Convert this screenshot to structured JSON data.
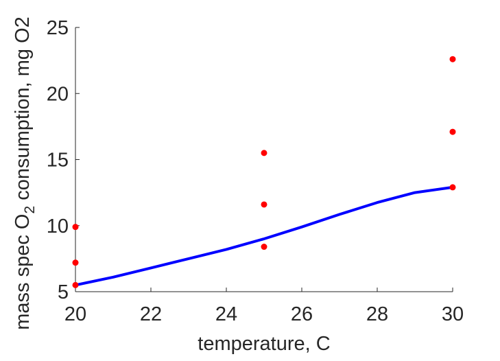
{
  "chart_data": {
    "type": "scatter",
    "xlabel": "temperature, C",
    "ylabel": {
      "prefix": "mass spec O",
      "subscript": "2",
      "suffix": " consumption, mg O2"
    },
    "xlim": [
      20,
      30
    ],
    "ylim": [
      5,
      25
    ],
    "xticks": [
      20,
      22,
      24,
      26,
      28,
      30
    ],
    "yticks": [
      5,
      10,
      15,
      20,
      25
    ],
    "grid": false,
    "series": [
      {
        "kind": "points",
        "color": "#ff0000",
        "points": [
          {
            "x": 20,
            "y": 5.5
          },
          {
            "x": 20,
            "y": 7.2
          },
          {
            "x": 20,
            "y": 9.9
          },
          {
            "x": 25,
            "y": 8.4
          },
          {
            "x": 25,
            "y": 11.6
          },
          {
            "x": 25,
            "y": 15.5
          },
          {
            "x": 30,
            "y": 12.9
          },
          {
            "x": 30,
            "y": 17.1
          },
          {
            "x": 30,
            "y": 22.6
          }
        ]
      },
      {
        "kind": "line",
        "color": "#0000ff",
        "points": [
          {
            "x": 20,
            "y": 5.5
          },
          {
            "x": 21,
            "y": 6.1
          },
          {
            "x": 22,
            "y": 6.8
          },
          {
            "x": 23,
            "y": 7.5
          },
          {
            "x": 24,
            "y": 8.2
          },
          {
            "x": 25,
            "y": 9.0
          },
          {
            "x": 26,
            "y": 9.9
          },
          {
            "x": 27,
            "y": 10.85
          },
          {
            "x": 28,
            "y": 11.75
          },
          {
            "x": 29,
            "y": 12.5
          },
          {
            "x": 30,
            "y": 12.9
          }
        ]
      }
    ]
  }
}
